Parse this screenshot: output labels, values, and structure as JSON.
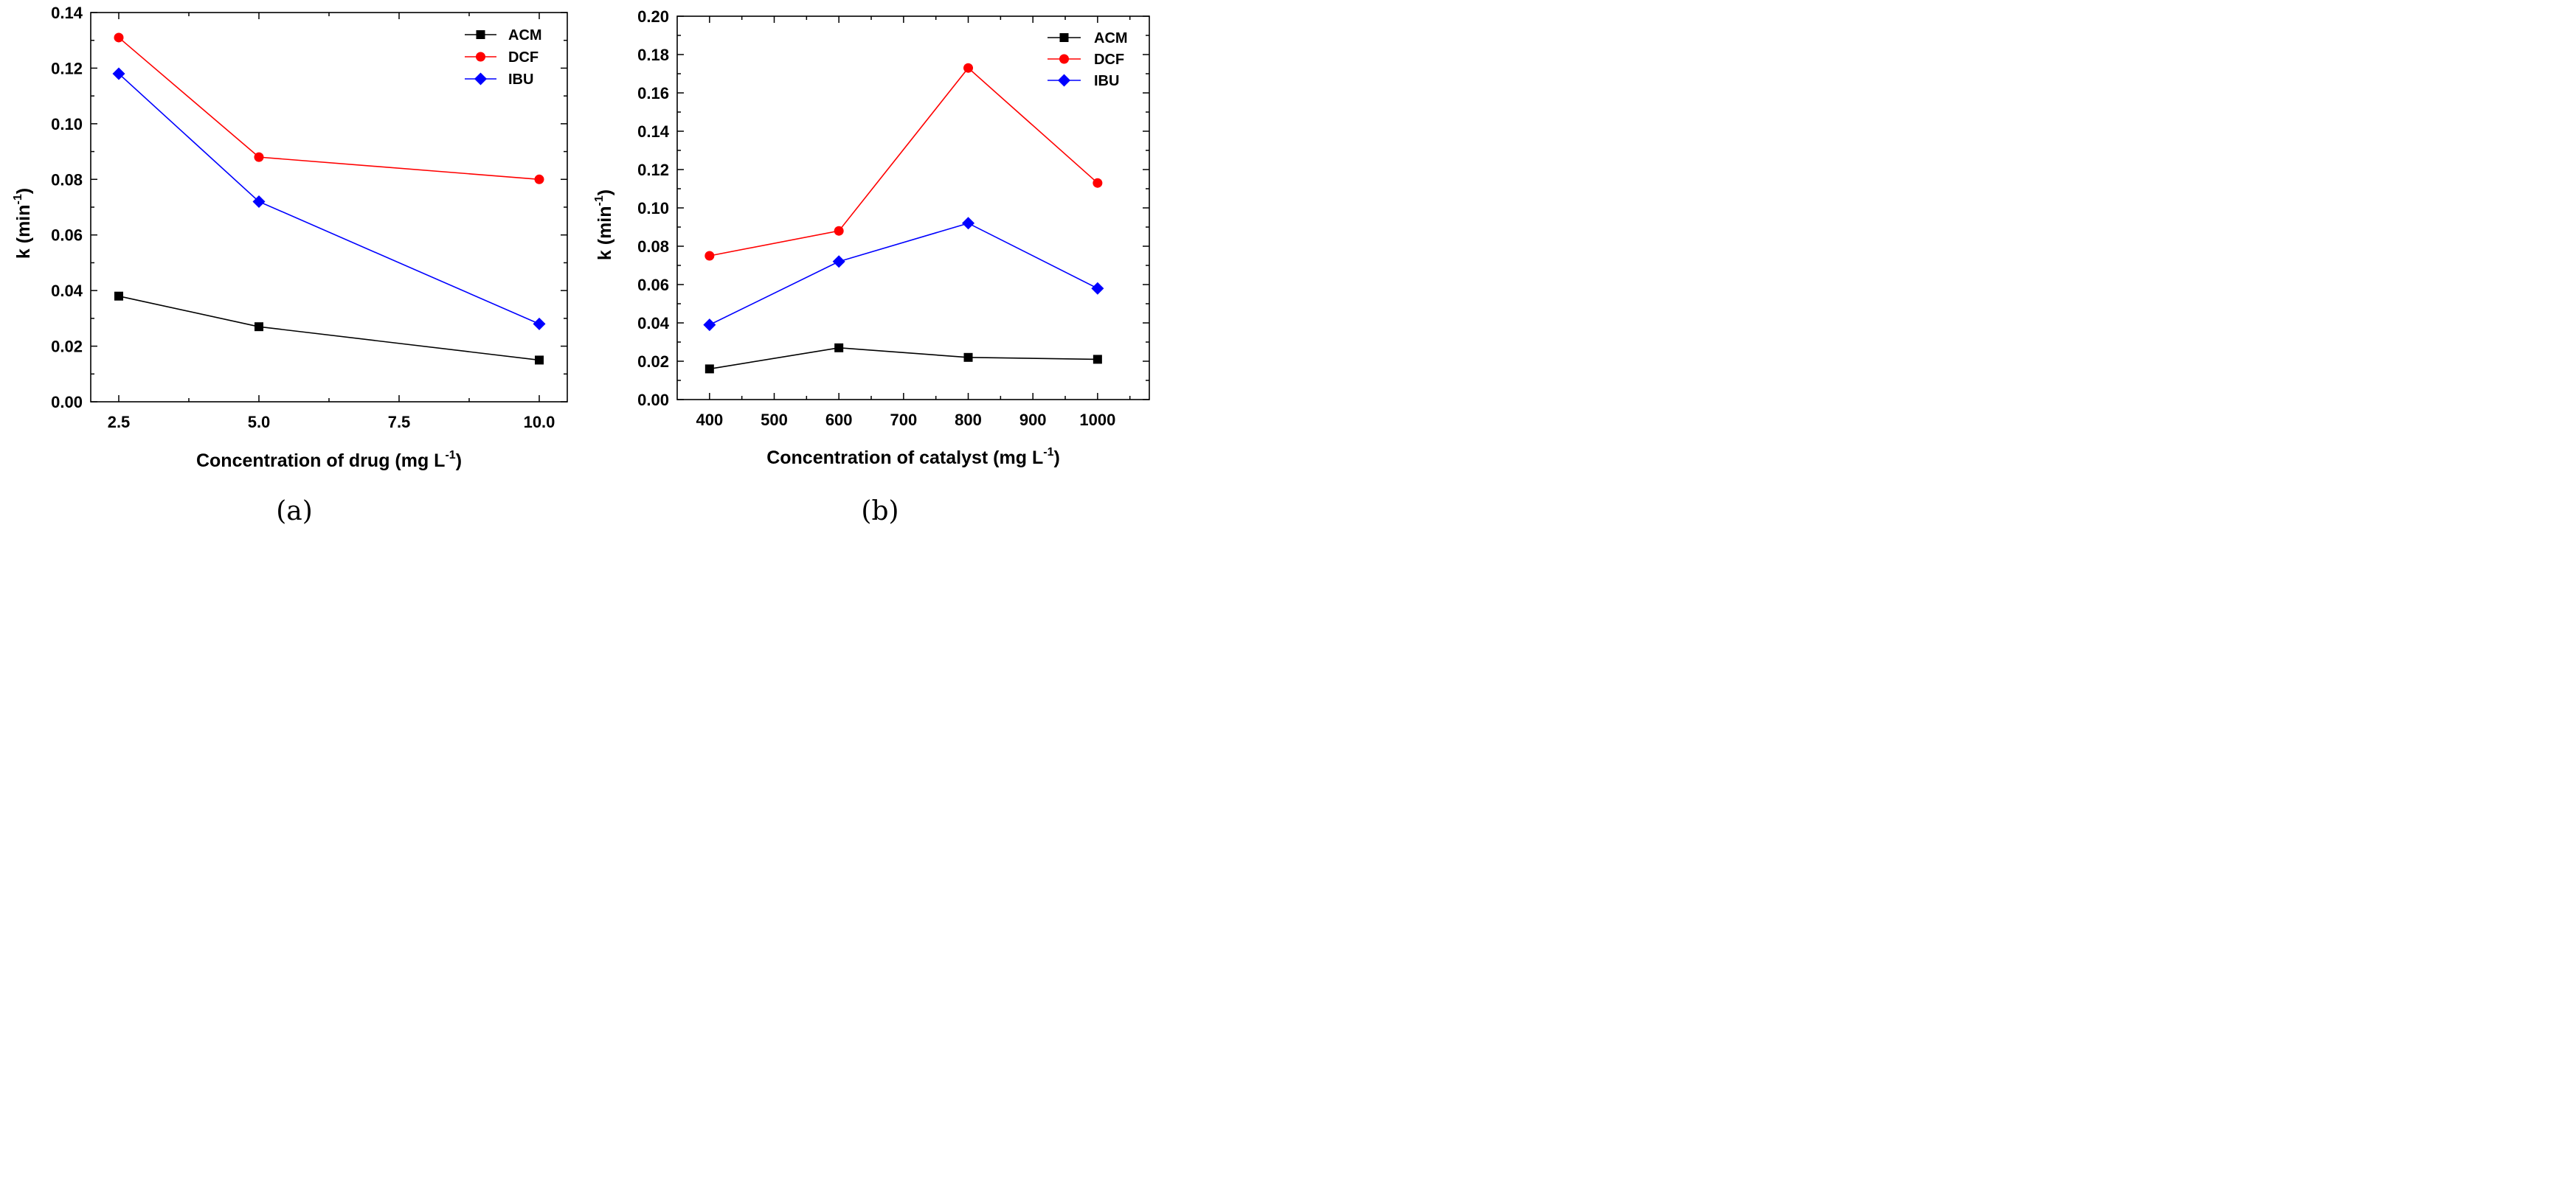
{
  "chart_data": [
    {
      "id": "a",
      "type": "line",
      "panel_label": "(a)",
      "xlabel": "Concentration of drug (mg L",
      "xlabel_sup": "-1",
      "xlabel_end": ")",
      "ylabel": "k (min",
      "ylabel_sup": "-1",
      "ylabel_end": ")",
      "xlim": [
        2.0,
        10.5
      ],
      "ylim": [
        0.0,
        0.14
      ],
      "xticks": [
        2.5,
        5.0,
        7.5,
        10.0
      ],
      "xtick_labels": [
        "2.5",
        "5.0",
        "7.5",
        "10.0"
      ],
      "yticks": [
        0.0,
        0.02,
        0.04,
        0.06,
        0.08,
        0.1,
        0.12,
        0.14
      ],
      "ytick_labels": [
        "0.00",
        "0.02",
        "0.04",
        "0.06",
        "0.08",
        "0.10",
        "0.12",
        "0.14"
      ],
      "legend_position": "top-right",
      "x": [
        2.5,
        5.0,
        10.0
      ],
      "series": [
        {
          "name": "ACM",
          "color": "#000000",
          "marker": "square",
          "values": [
            0.038,
            0.027,
            0.015
          ]
        },
        {
          "name": "DCF",
          "color": "#ff0000",
          "marker": "circle",
          "values": [
            0.131,
            0.088,
            0.08
          ]
        },
        {
          "name": "IBU",
          "color": "#0000ff",
          "marker": "diamond",
          "values": [
            0.118,
            0.072,
            0.028
          ]
        }
      ]
    },
    {
      "id": "b",
      "type": "line",
      "panel_label": "(b)",
      "xlabel": "Concentration of catalyst (mg L",
      "xlabel_sup": "-1",
      "xlabel_end": ")",
      "ylabel": "k (min",
      "ylabel_sup": "-1",
      "ylabel_end": ")",
      "xlim": [
        350,
        1080
      ],
      "ylim": [
        0.0,
        0.2
      ],
      "xticks": [
        400,
        500,
        600,
        700,
        800,
        900,
        1000
      ],
      "xtick_labels": [
        "400",
        "500",
        "600",
        "700",
        "800",
        "900",
        "1000"
      ],
      "yticks": [
        0.0,
        0.02,
        0.04,
        0.06,
        0.08,
        0.1,
        0.12,
        0.14,
        0.16,
        0.18,
        0.2
      ],
      "ytick_labels": [
        "0.00",
        "0.02",
        "0.04",
        "0.06",
        "0.08",
        "0.10",
        "0.12",
        "0.14",
        "0.16",
        "0.18",
        "0.20"
      ],
      "legend_position": "top-right",
      "x": [
        400,
        600,
        800,
        1000
      ],
      "series": [
        {
          "name": "ACM",
          "color": "#000000",
          "marker": "square",
          "values": [
            0.016,
            0.027,
            0.022,
            0.021
          ]
        },
        {
          "name": "DCF",
          "color": "#ff0000",
          "marker": "circle",
          "values": [
            0.075,
            0.088,
            0.173,
            0.113
          ]
        },
        {
          "name": "IBU",
          "color": "#0000ff",
          "marker": "diamond",
          "values": [
            0.039,
            0.072,
            0.092,
            0.058
          ]
        }
      ]
    }
  ]
}
